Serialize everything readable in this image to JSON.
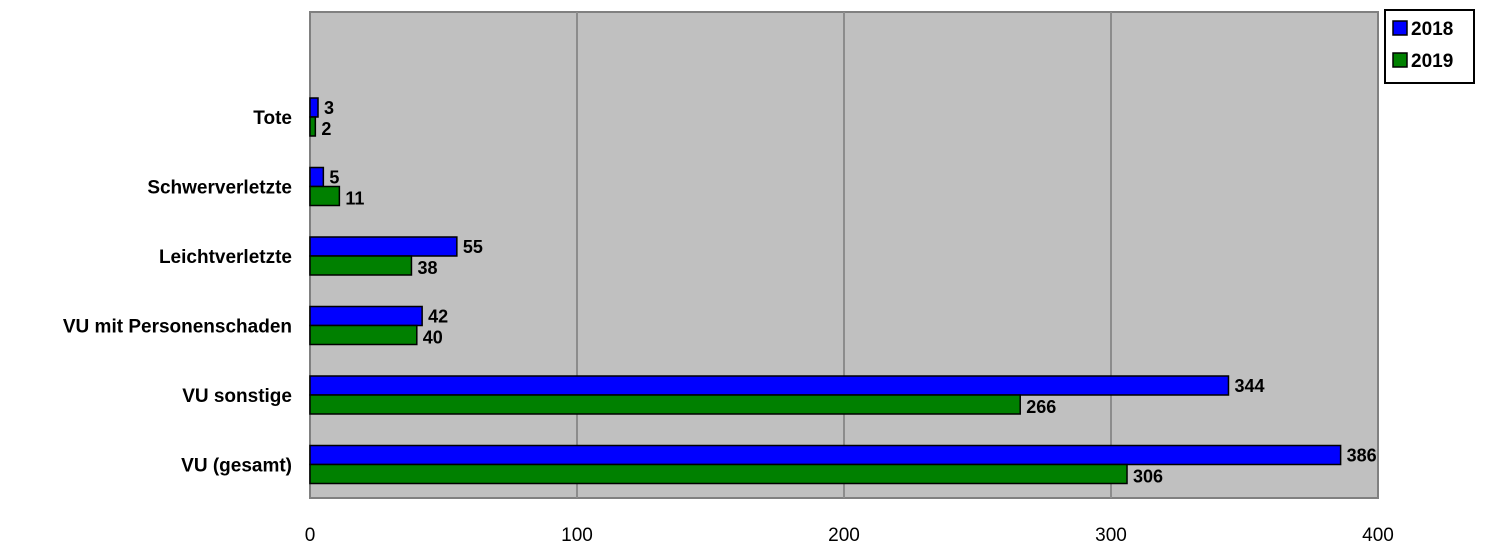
{
  "chart_data": {
    "type": "bar",
    "orientation": "horizontal",
    "categories": [
      "Tote",
      "Schwerverletzte",
      "Leichtverletzte",
      "VU mit Personenschaden",
      "VU sonstige",
      "VU (gesamt)"
    ],
    "series": [
      {
        "name": "2018",
        "values": [
          3,
          5,
          55,
          42,
          344,
          386
        ],
        "color": "#0000ff"
      },
      {
        "name": "2019",
        "values": [
          2,
          11,
          38,
          40,
          266,
          306
        ],
        "color": "#008000"
      }
    ],
    "xlim": [
      0,
      400
    ],
    "xticks": [
      0,
      100,
      200,
      300,
      400
    ],
    "grid": true,
    "legend_position": "top-right",
    "plot_background": "#c0c0c0",
    "title": "",
    "xlabel": "",
    "ylabel": ""
  }
}
